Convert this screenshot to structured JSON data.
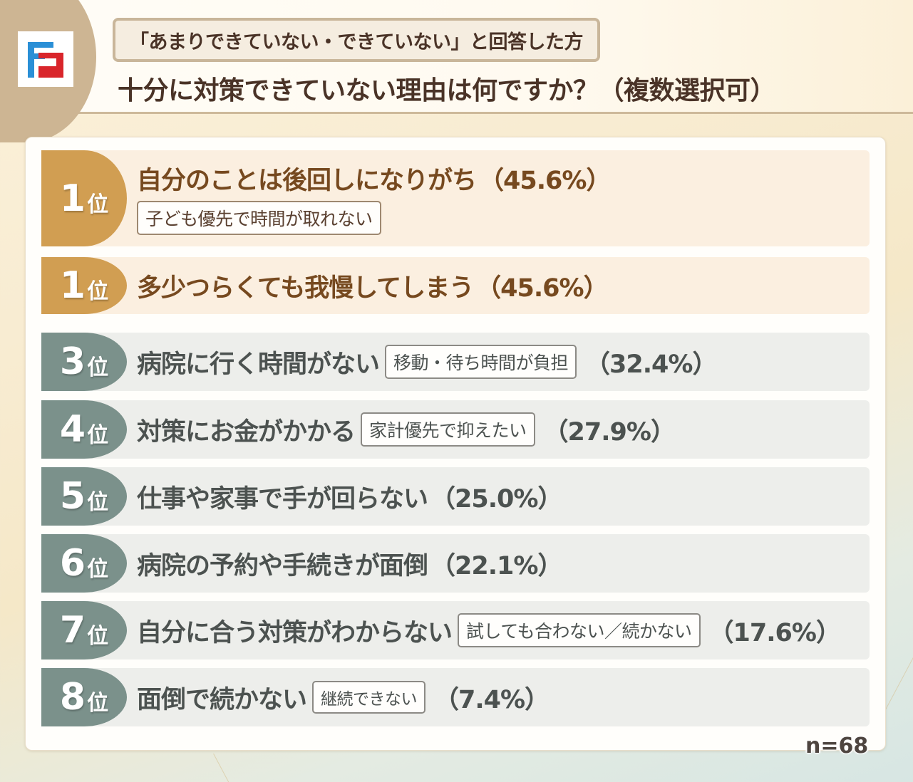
{
  "header": {
    "subtitle": "「あまりできていない・できていない」と回答した方",
    "title": "十分に対策できていない理由は何ですか？（複数選択可）",
    "logo": "fujifilm-style-f-logo-icon"
  },
  "colors": {
    "top_rank_badge": "#d19e52",
    "other_rank_badge": "#7b918b",
    "top_row_bg": "#fbefe0",
    "other_row_bg": "#edeeeb",
    "top_text": "#76491f",
    "other_text": "#4c5250",
    "logo_blue": "#2a8fd6",
    "logo_red": "#d9252b"
  },
  "rank_suffix": "位",
  "items": [
    {
      "rank": "1",
      "label": "自分のことは後回しになりがち",
      "note": "子ども優先で時間が取れない",
      "pct": "（45.6%）",
      "tier": "gold"
    },
    {
      "rank": "1",
      "label": "多少つらくても我慢してしまう",
      "note": "",
      "pct": "（45.6%）",
      "tier": "gold"
    },
    {
      "rank": "3",
      "label": "病院に行く時間がない",
      "note": "移動・待ち時間が負担",
      "pct": "（32.4%）",
      "tier": "gray"
    },
    {
      "rank": "4",
      "label": "対策にお金がかかる",
      "note": "家計優先で抑えたい",
      "pct": "（27.9%）",
      "tier": "gray"
    },
    {
      "rank": "5",
      "label": "仕事や家事で手が回らない",
      "note": "",
      "pct": "（25.0%）",
      "tier": "gray"
    },
    {
      "rank": "6",
      "label": "病院の予約や手続きが面倒",
      "note": "",
      "pct": "（22.1%）",
      "tier": "gray"
    },
    {
      "rank": "7",
      "label": "自分に合う対策がわからない",
      "note": "試しても合わない／続かない",
      "pct": "（17.6%）",
      "tier": "gray"
    },
    {
      "rank": "8",
      "label": "面倒で続かない",
      "note": "継続できない",
      "pct": "（7.4%）",
      "tier": "gray"
    }
  ],
  "footer": {
    "sample_size": "n=68"
  },
  "chart_data": {
    "type": "table",
    "title": "十分に対策できていない理由は何ですか？（複数選択可）",
    "subtitle": "「あまりできていない・できていない」と回答した方",
    "columns": [
      "rank",
      "reason",
      "detail",
      "percent"
    ],
    "categories": [
      "自分のことは後回しになりがち",
      "多少つらくても我慢してしまう",
      "病院に行く時間がない",
      "対策にお金がかかる",
      "仕事や家事で手が回らない",
      "病院の予約や手続きが面倒",
      "自分に合う対策がわからない",
      "面倒で続かない"
    ],
    "ranks": [
      1,
      1,
      3,
      4,
      5,
      6,
      7,
      8
    ],
    "details": [
      "子ども優先で時間が取れない",
      "",
      "移動・待ち時間が負担",
      "家計優先で抑えたい",
      "",
      "",
      "試しても合わない／続かない",
      "継続できない"
    ],
    "values": [
      45.6,
      45.6,
      32.4,
      27.9,
      25.0,
      22.1,
      17.6,
      7.4
    ],
    "unit": "%",
    "n": 68
  }
}
